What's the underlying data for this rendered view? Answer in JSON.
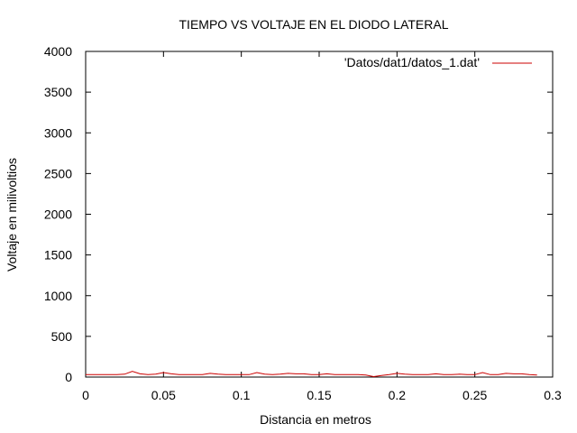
{
  "chart_data": {
    "type": "line",
    "title": "TIEMPO VS VOLTAJE EN EL DIODO LATERAL",
    "xlabel": "Distancia en metros",
    "ylabel": "Voltaje en milivoltios",
    "xlim": [
      0,
      0.3
    ],
    "ylim": [
      0,
      4000
    ],
    "x_ticks": [
      0,
      0.05,
      0.1,
      0.15,
      0.2,
      0.25,
      0.3
    ],
    "x_tick_labels": [
      "0",
      "0.05",
      "0.1",
      "0.15",
      "0.2",
      "0.25",
      "0.3"
    ],
    "y_ticks": [
      0,
      500,
      1000,
      1500,
      2000,
      2500,
      3000,
      3500,
      4000
    ],
    "y_tick_labels": [
      "0",
      "500",
      "1000",
      "1500",
      "2000",
      "2500",
      "3000",
      "3500",
      "4000"
    ],
    "grid": false,
    "legend_position": "top-right",
    "series": [
      {
        "name": "'Datos/dat1/datos_1.dat'",
        "color": "#cc0000",
        "x": [
          0,
          0.005,
          0.01,
          0.015,
          0.02,
          0.025,
          0.03,
          0.035,
          0.04,
          0.045,
          0.05,
          0.055,
          0.06,
          0.065,
          0.07,
          0.075,
          0.08,
          0.085,
          0.09,
          0.095,
          0.1,
          0.105,
          0.11,
          0.115,
          0.12,
          0.125,
          0.13,
          0.135,
          0.14,
          0.145,
          0.15,
          0.155,
          0.16,
          0.165,
          0.17,
          0.175,
          0.18,
          0.185,
          0.19,
          0.195,
          0.2,
          0.205,
          0.21,
          0.215,
          0.22,
          0.225,
          0.23,
          0.235,
          0.24,
          0.245,
          0.25,
          0.255,
          0.26,
          0.265,
          0.27,
          0.275,
          0.28,
          0.285,
          0.29
        ],
        "y": [
          30,
          30,
          30,
          30,
          30,
          35,
          70,
          40,
          30,
          35,
          55,
          40,
          30,
          30,
          30,
          30,
          45,
          35,
          30,
          30,
          30,
          30,
          55,
          35,
          30,
          35,
          45,
          40,
          40,
          30,
          30,
          40,
          30,
          30,
          30,
          30,
          25,
          5,
          20,
          30,
          45,
          35,
          30,
          30,
          30,
          40,
          30,
          30,
          35,
          30,
          30,
          55,
          30,
          30,
          45,
          40,
          40,
          30,
          25
        ]
      }
    ]
  }
}
